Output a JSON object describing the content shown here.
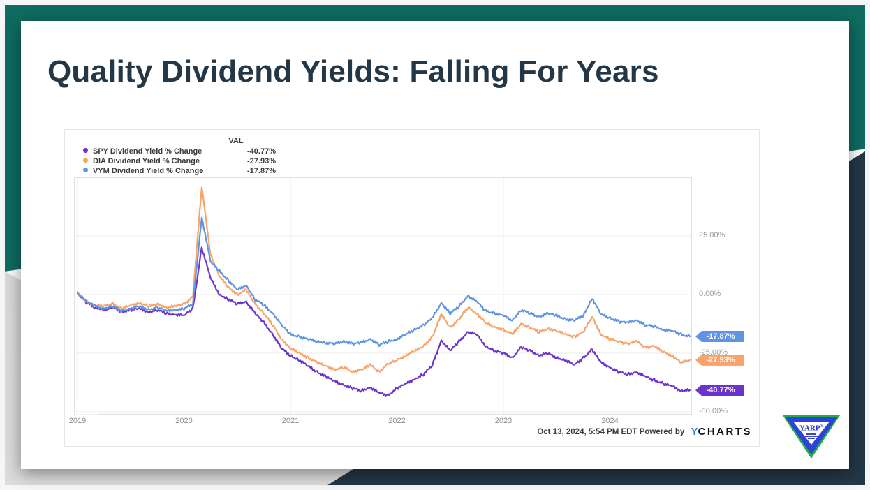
{
  "slide": {
    "title": "Quality Dividend Yields: Falling For Years"
  },
  "footer": {
    "timestamp": "Oct 13, 2024, 5:54 PM EDT",
    "powered_by": "Powered by",
    "brand_first": "Y",
    "brand_rest": "CHARTS"
  },
  "logo": {
    "name": "YARP",
    "reg": "®"
  },
  "chart_data": {
    "type": "line",
    "title": "",
    "legend_header": "VAL",
    "legend_position": "top-left",
    "grid": true,
    "x_start": "2019-01",
    "x_end": "2024-10",
    "x_unit": "month",
    "x_ticks": [
      {
        "label": "2019"
      },
      {
        "label": "2020"
      },
      {
        "label": "2021"
      },
      {
        "label": "2022"
      },
      {
        "label": "2023"
      },
      {
        "label": "2024"
      }
    ],
    "y_ticks": [
      {
        "v": 25,
        "label": "25.00%"
      },
      {
        "v": 0,
        "label": "0.00%"
      },
      {
        "v": -25,
        "label": "-25.00%"
      },
      {
        "v": -50,
        "label": "-50.00%"
      }
    ],
    "ylim": [
      -51.2,
      50
    ],
    "series": [
      {
        "name": "SPY Dividend Yield % Change",
        "color": "#6b33cc",
        "final": -40.77,
        "final_label": "-40.77%",
        "values": [
          1.0,
          -3.5,
          -5.5,
          -6.5,
          -5.5,
          -7.5,
          -6.5,
          -6.0,
          -7.5,
          -6.5,
          -8.0,
          -8.5,
          -9.0,
          -6.0,
          20.0,
          7.0,
          0.0,
          -2.0,
          -4.0,
          -3.0,
          -8.0,
          -12.0,
          -17.0,
          -23.0,
          -26.0,
          -28.0,
          -30.5,
          -33.0,
          -35.0,
          -37.0,
          -38.5,
          -40.0,
          -41.0,
          -39.5,
          -42.0,
          -43.0,
          -40.0,
          -38.0,
          -36.0,
          -34.0,
          -30.0,
          -19.5,
          -24.0,
          -20.0,
          -16.0,
          -17.0,
          -22.0,
          -24.0,
          -25.0,
          -27.0,
          -22.5,
          -24.0,
          -26.0,
          -25.0,
          -27.0,
          -28.0,
          -30.0,
          -27.0,
          -23.5,
          -29.0,
          -31.0,
          -33.0,
          -34.0,
          -33.0,
          -35.0,
          -36.5,
          -38.0,
          -39.0,
          -41.0,
          -40.77
        ]
      },
      {
        "name": "DIA Dividend Yield % Change",
        "color": "#f9a36b",
        "final": -27.93,
        "final_label": "-27.93%",
        "values": [
          0.5,
          -3.0,
          -4.5,
          -5.0,
          -4.0,
          -6.0,
          -4.5,
          -3.5,
          -5.0,
          -4.0,
          -5.5,
          -5.0,
          -4.0,
          -1.0,
          46.0,
          17.0,
          8.0,
          3.0,
          0.0,
          2.0,
          -4.0,
          -8.0,
          -13.0,
          -19.0,
          -23.0,
          -25.0,
          -27.0,
          -29.0,
          -30.5,
          -32.0,
          -31.0,
          -33.0,
          -32.0,
          -30.0,
          -33.0,
          -29.5,
          -28.0,
          -26.0,
          -24.0,
          -22.0,
          -18.0,
          -8.5,
          -14.0,
          -10.5,
          -5.5,
          -8.0,
          -12.0,
          -14.0,
          -15.0,
          -17.0,
          -12.5,
          -14.0,
          -16.0,
          -14.5,
          -15.5,
          -17.0,
          -18.0,
          -16.0,
          -9.5,
          -17.0,
          -19.0,
          -20.0,
          -21.0,
          -20.0,
          -22.5,
          -22.0,
          -24.5,
          -26.0,
          -29.0,
          -27.93
        ]
      },
      {
        "name": "VYM Dividend Yield % Change",
        "color": "#5f94e3",
        "final": -17.87,
        "final_label": "-17.87%",
        "values": [
          0.5,
          -3.0,
          -5.0,
          -6.0,
          -5.0,
          -7.0,
          -6.0,
          -5.0,
          -6.5,
          -5.5,
          -7.0,
          -6.5,
          -6.0,
          -4.0,
          33.0,
          14.0,
          10.0,
          6.0,
          2.0,
          4.0,
          -2.0,
          -4.5,
          -8.0,
          -13.0,
          -17.0,
          -18.0,
          -19.0,
          -20.0,
          -20.5,
          -21.0,
          -20.0,
          -21.0,
          -20.5,
          -19.0,
          -21.5,
          -20.0,
          -19.0,
          -17.0,
          -15.0,
          -13.0,
          -10.0,
          -3.5,
          -8.0,
          -5.0,
          -0.5,
          -3.0,
          -7.0,
          -8.0,
          -9.0,
          -11.0,
          -6.5,
          -8.0,
          -9.5,
          -8.0,
          -9.0,
          -10.5,
          -11.0,
          -9.0,
          -1.5,
          -8.5,
          -10.0,
          -11.5,
          -12.0,
          -11.0,
          -13.0,
          -13.5,
          -15.0,
          -15.5,
          -17.0,
          -17.87
        ]
      }
    ]
  }
}
